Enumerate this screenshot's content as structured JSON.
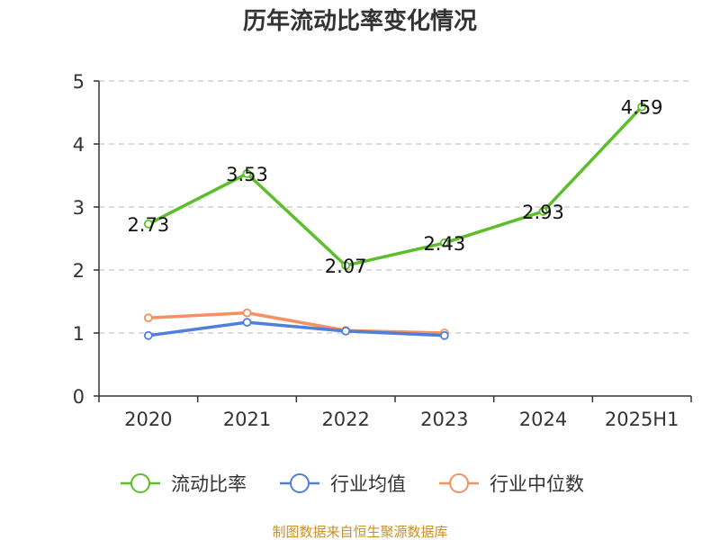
{
  "chart_data": {
    "type": "line",
    "title": "历年流动比率变化情况",
    "categories": [
      "2020",
      "2021",
      "2022",
      "2023",
      "2024",
      "2025H1"
    ],
    "ylim": [
      0,
      5
    ],
    "yticks": [
      0,
      1,
      2,
      3,
      4,
      5
    ],
    "grid": true,
    "legend_position": "bottom",
    "series": [
      {
        "name": "流动比率",
        "color": "#5cbf2a",
        "values": [
          2.73,
          3.53,
          2.07,
          2.43,
          2.93,
          4.59
        ],
        "labels": [
          "2.73",
          "3.53",
          "2.07",
          "2.43",
          "2.93",
          "4.59"
        ]
      },
      {
        "name": "行业均值",
        "color": "#4f7fd9",
        "values": [
          0.96,
          1.17,
          1.03,
          0.96,
          null,
          null
        ]
      },
      {
        "name": "行业中位数",
        "color": "#f59160",
        "values": [
          1.24,
          1.32,
          1.04,
          1.0,
          null,
          null
        ]
      }
    ],
    "source": "制图数据来自恒生聚源数据库"
  }
}
